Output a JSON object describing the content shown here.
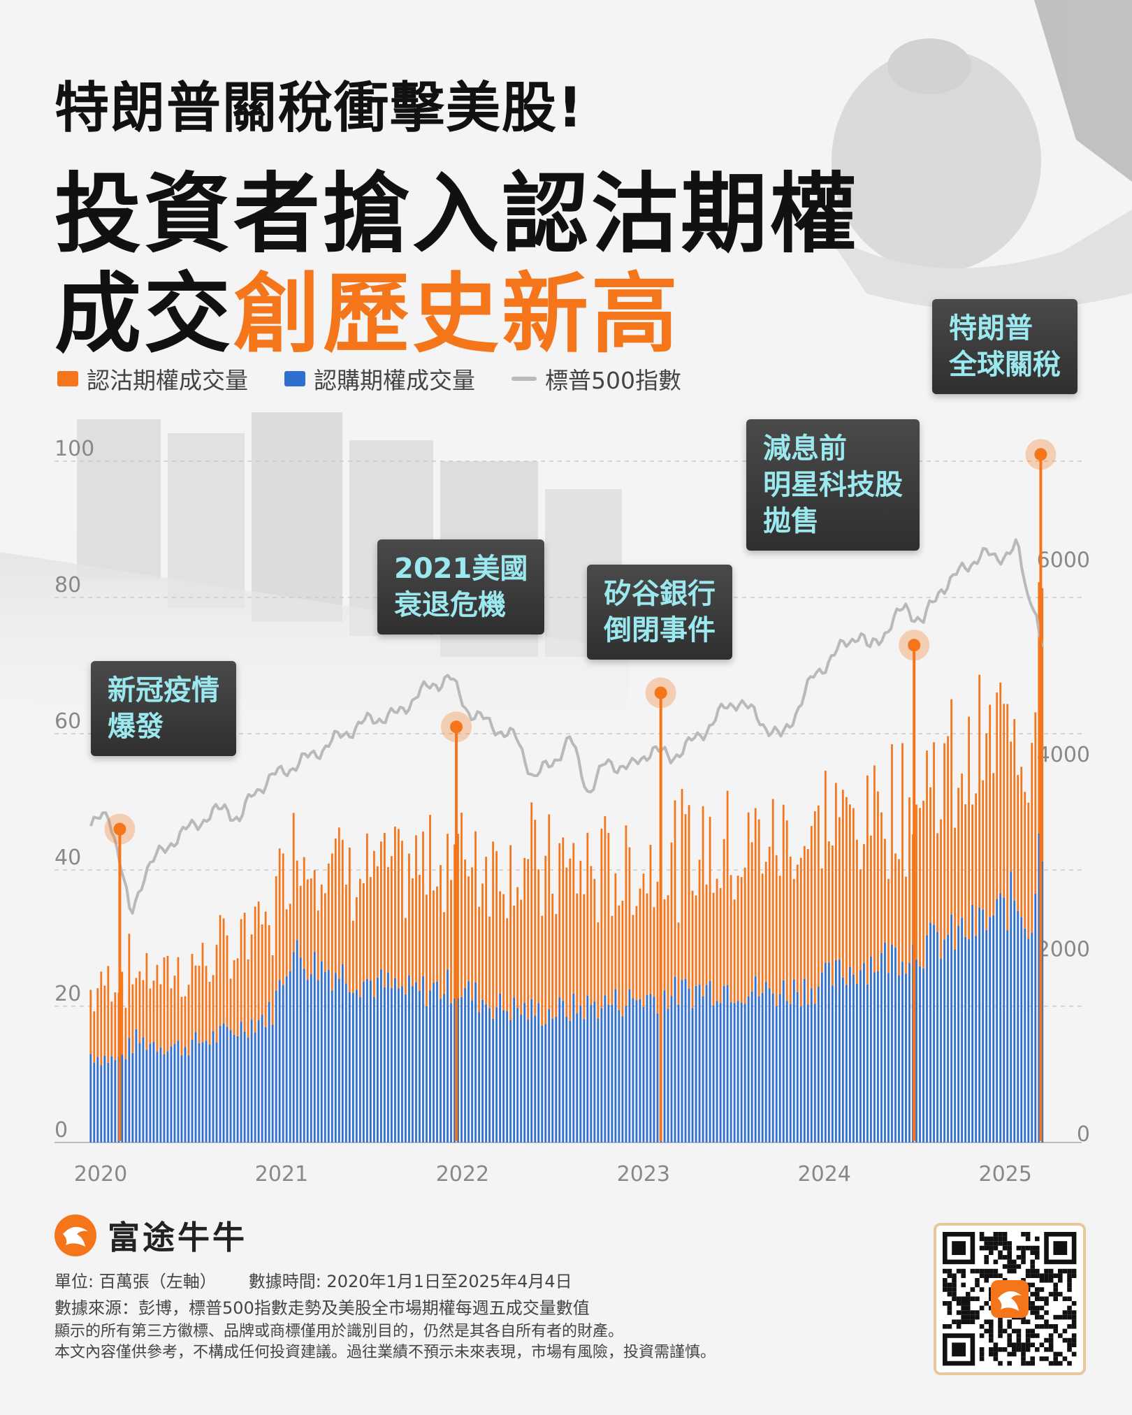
{
  "headline": {
    "line1": "特朗普關稅衝擊美股!",
    "line2": "投資者搶入認沽期權",
    "line3_plain": "成交",
    "line3_highlight": "創歷史新高"
  },
  "colors": {
    "put": "#f5761a",
    "call": "#2f6fd0",
    "index": "#b9b9b9",
    "annotation_text": "#9be8ef",
    "accent": "#f5761a"
  },
  "legend": [
    {
      "label": "認沽期權成交量",
      "color": "#f5761a",
      "kind": "bar"
    },
    {
      "label": "認購期權成交量",
      "color": "#2f6fd0",
      "kind": "bar"
    },
    {
      "label": "標普500指數",
      "color": "#b9b9b9",
      "kind": "line"
    }
  ],
  "chart_data": {
    "type": "bar",
    "stacked": true,
    "x_range": [
      2020.0,
      2025.26
    ],
    "x_ticks": [
      "2020",
      "2021",
      "2022",
      "2023",
      "2024",
      "2025"
    ],
    "y_left": {
      "range": [
        0,
        100
      ],
      "ticks": [
        "0",
        "20",
        "40",
        "60",
        "80",
        "100"
      ]
    },
    "y_right": {
      "range": [
        0,
        7000
      ],
      "ticks": [
        "0",
        "2000",
        "4000",
        "6000"
      ]
    },
    "grid": true,
    "series": [
      {
        "name": "認購期權成交量",
        "key": "call",
        "points": [
          [
            2020.0,
            13
          ],
          [
            2020.15,
            12
          ],
          [
            2020.25,
            15
          ],
          [
            2020.5,
            14
          ],
          [
            2020.75,
            16
          ],
          [
            2021.0,
            19
          ],
          [
            2021.1,
            28
          ],
          [
            2021.25,
            26
          ],
          [
            2021.5,
            24
          ],
          [
            2021.75,
            22
          ],
          [
            2022.0,
            23
          ],
          [
            2022.25,
            20
          ],
          [
            2022.5,
            19
          ],
          [
            2022.75,
            20
          ],
          [
            2023.0,
            21
          ],
          [
            2023.25,
            22
          ],
          [
            2023.5,
            23
          ],
          [
            2023.75,
            22
          ],
          [
            2024.0,
            23
          ],
          [
            2024.25,
            26
          ],
          [
            2024.5,
            28
          ],
          [
            2024.75,
            30
          ],
          [
            2025.0,
            33
          ],
          [
            2025.1,
            36
          ],
          [
            2025.2,
            32
          ],
          [
            2025.25,
            46
          ]
        ]
      },
      {
        "name": "認沽期權成交量",
        "key": "put",
        "points": [
          [
            2020.0,
            9
          ],
          [
            2020.15,
            13
          ],
          [
            2020.25,
            10
          ],
          [
            2020.5,
            11
          ],
          [
            2020.75,
            12
          ],
          [
            2021.0,
            14
          ],
          [
            2021.1,
            16
          ],
          [
            2021.25,
            17
          ],
          [
            2021.5,
            16
          ],
          [
            2021.75,
            17
          ],
          [
            2022.0,
            20
          ],
          [
            2022.25,
            22
          ],
          [
            2022.5,
            21
          ],
          [
            2022.75,
            20
          ],
          [
            2023.0,
            19
          ],
          [
            2023.25,
            20
          ],
          [
            2023.5,
            21
          ],
          [
            2023.75,
            22
          ],
          [
            2024.0,
            23
          ],
          [
            2024.25,
            22
          ],
          [
            2024.5,
            23
          ],
          [
            2024.75,
            24
          ],
          [
            2025.0,
            25
          ],
          [
            2025.1,
            28
          ],
          [
            2025.2,
            27
          ],
          [
            2025.25,
            55
          ]
        ]
      },
      {
        "name": "標普500指數",
        "key": "index",
        "axis": "right",
        "points": [
          [
            2020.0,
            3250
          ],
          [
            2020.1,
            3380
          ],
          [
            2020.15,
            3000
          ],
          [
            2020.22,
            2300
          ],
          [
            2020.3,
            2800
          ],
          [
            2020.45,
            3100
          ],
          [
            2020.6,
            3300
          ],
          [
            2020.75,
            3450
          ],
          [
            2020.82,
            3300
          ],
          [
            2020.9,
            3600
          ],
          [
            2021.0,
            3750
          ],
          [
            2021.2,
            3950
          ],
          [
            2021.4,
            4200
          ],
          [
            2021.55,
            4350
          ],
          [
            2021.7,
            4400
          ],
          [
            2021.8,
            4600
          ],
          [
            2021.98,
            4790
          ],
          [
            2022.08,
            4450
          ],
          [
            2022.2,
            4300
          ],
          [
            2022.35,
            4150
          ],
          [
            2022.45,
            3750
          ],
          [
            2022.55,
            3900
          ],
          [
            2022.65,
            4150
          ],
          [
            2022.75,
            3600
          ],
          [
            2022.85,
            3900
          ],
          [
            2022.99,
            3850
          ],
          [
            2023.1,
            4050
          ],
          [
            2023.2,
            3950
          ],
          [
            2023.35,
            4150
          ],
          [
            2023.5,
            4450
          ],
          [
            2023.58,
            4550
          ],
          [
            2023.72,
            4300
          ],
          [
            2023.82,
            4150
          ],
          [
            2023.99,
            4770
          ],
          [
            2024.1,
            5000
          ],
          [
            2024.25,
            5250
          ],
          [
            2024.3,
            5050
          ],
          [
            2024.5,
            5500
          ],
          [
            2024.6,
            5350
          ],
          [
            2024.7,
            5700
          ],
          [
            2024.8,
            5850
          ],
          [
            2024.92,
            6050
          ],
          [
            2025.0,
            6000
          ],
          [
            2025.12,
            6120
          ],
          [
            2025.18,
            5600
          ],
          [
            2025.22,
            5550
          ],
          [
            2025.25,
            5080
          ]
        ]
      }
    ],
    "events": [
      {
        "label": "新冠疫情\n爆發",
        "x": 2020.16,
        "y": 46
      },
      {
        "label": "2021美國\n衰退危機",
        "x": 2022.02,
        "y": 61
      },
      {
        "label": "矽谷銀行\n倒閉事件",
        "x": 2023.15,
        "y": 66
      },
      {
        "label": "減息前\n明星科技股\n拋售",
        "x": 2024.55,
        "y": 73
      },
      {
        "label": "特朗普\n全球關稅",
        "x": 2025.25,
        "y": 101
      }
    ]
  },
  "footer": {
    "brand": "富途牛牛",
    "unit": "單位: 百萬張（左軸）",
    "data_time": "數據時間: 2020年1月1日至2025年4月4日",
    "source": "數據來源：彭博，標普500指數走勢及美股全市場期權每週五成交量數值",
    "disclaimer1": "顯示的所有第三方徽標、品牌或商標僅用於識別目的，仍然是其各自所有者的財產。",
    "disclaimer2": "本文內容僅供參考，不構成任何投資建議。過往業績不預示未來表現，市場有風險，投資需謹慎。"
  }
}
